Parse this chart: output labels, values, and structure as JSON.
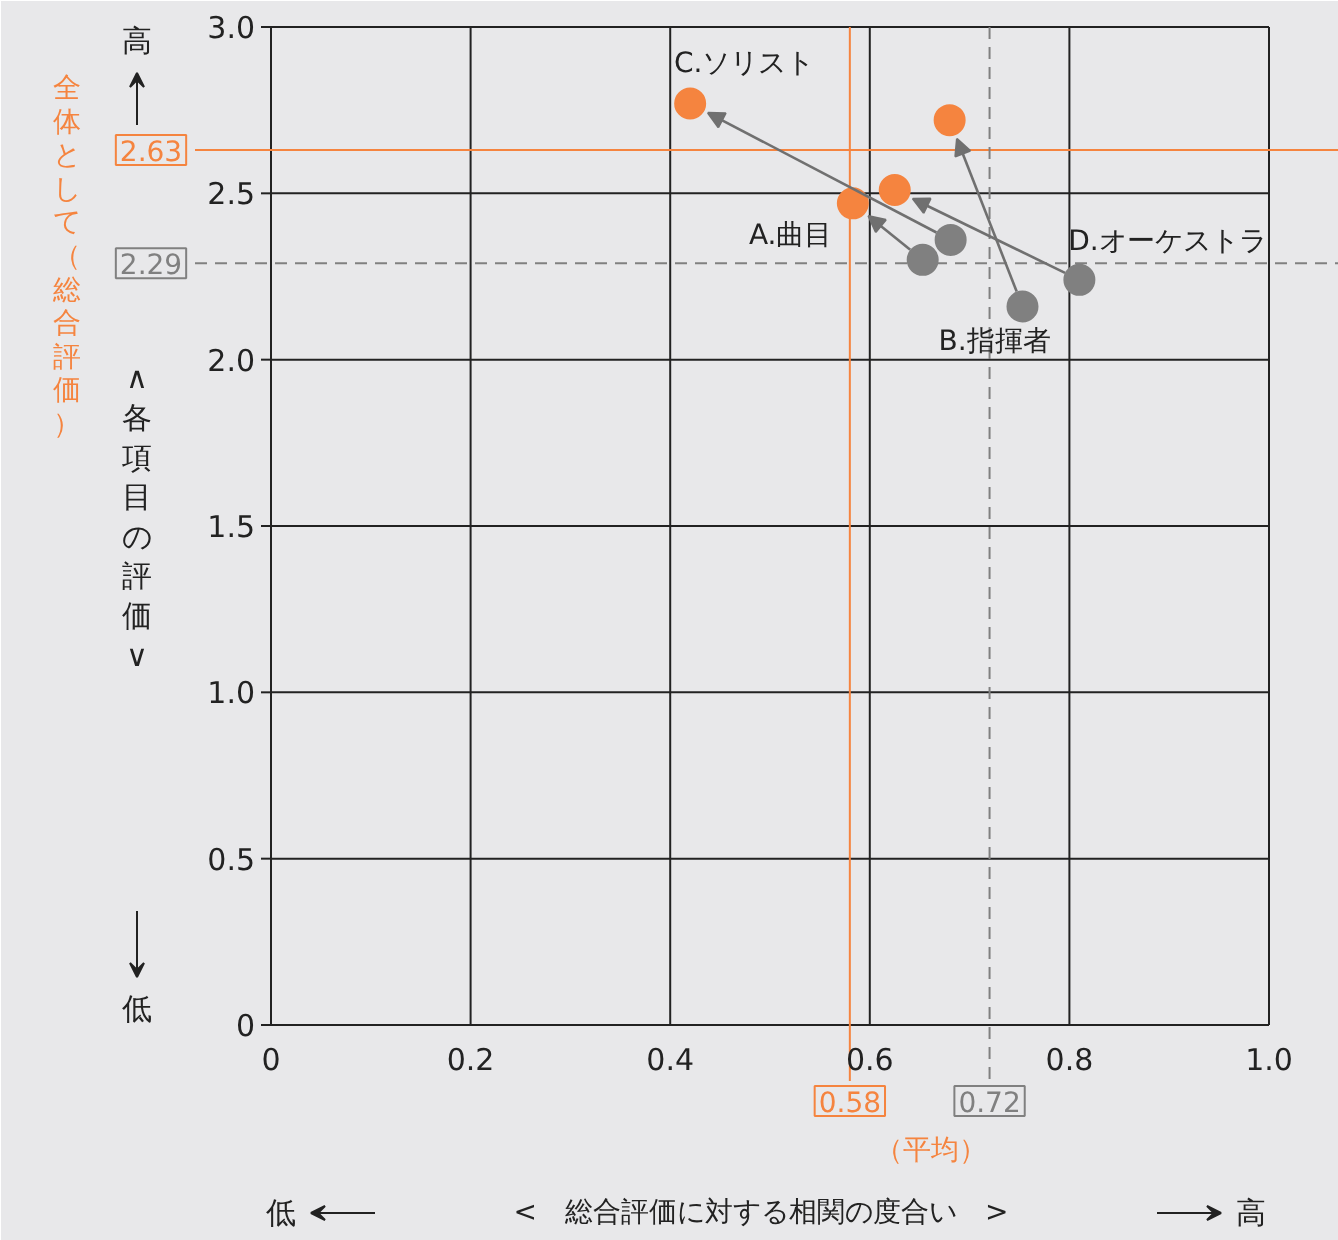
{
  "chart_data": {
    "type": "scatter",
    "xlabel": "<　総合評価に対する相関の度合い　>",
    "ylabel": "∧各項目の評価∨",
    "xlim": [
      0,
      1.0
    ],
    "ylim": [
      0,
      3.0
    ],
    "xticks": [
      0,
      0.2,
      0.4,
      0.6,
      0.8,
      {
        "value": 1.0,
        "label": "1.0"
      }
    ],
    "yticks": [
      0,
      0.5,
      {
        "value": 1.0,
        "label": "1.0"
      },
      1.5,
      {
        "value": 2.0,
        "label": "2.0"
      },
      2.5,
      {
        "value": 3.0,
        "label": "3.0"
      }
    ],
    "grid": true,
    "marker": "circle",
    "series": [
      {
        "color": "#808080",
        "x": [
          0.653,
          0.753,
          0.681,
          0.81
        ],
        "values": [
          2.3,
          2.16,
          2.36,
          2.24
        ]
      },
      {
        "color": "#f5843f",
        "x": [
          0.583,
          0.68,
          0.42,
          0.625
        ],
        "values": [
          2.47,
          2.72,
          2.77,
          2.51
        ]
      }
    ],
    "ref_lines": [
      {
        "axis": "y",
        "value": 2.63,
        "label": "2.63",
        "color": "#f5843f",
        "line_style": "solid"
      },
      {
        "axis": "y",
        "value": 2.29,
        "label": "2.29",
        "color": "#808080",
        "line_style": "dashed"
      },
      {
        "axis": "x",
        "value": 0.58,
        "label": "0.58",
        "color": "#f5843f",
        "line_style": "solid"
      },
      {
        "axis": "x",
        "value": 0.72,
        "label": "0.72",
        "color": "#808080",
        "line_style": "dashed"
      }
    ],
    "annotations": [
      {
        "text": "A.曲目",
        "x": 0.653,
        "y": 2.3
      },
      {
        "text": "B.指揮者",
        "x": 0.753,
        "y": 2.16
      },
      {
        "text": "C.ソリスト",
        "x": 0.42,
        "y": 2.77
      },
      {
        "text": "D.オーケストラ",
        "x": 0.81,
        "y": 2.24
      },
      "全体として（総合評価）",
      "（平均）",
      "高",
      "低",
      "低",
      "高"
    ]
  }
}
